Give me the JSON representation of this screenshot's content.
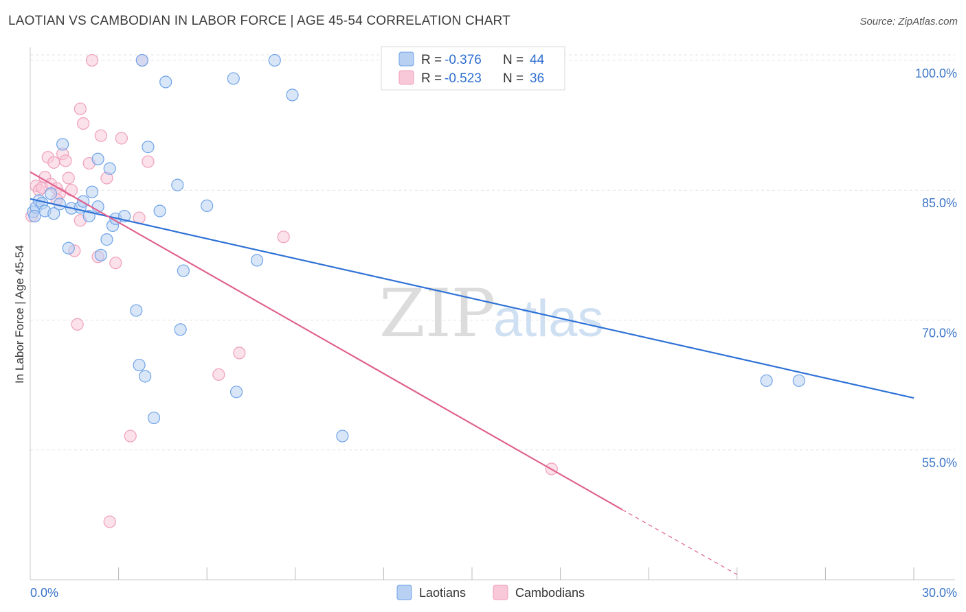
{
  "chart_data": {
    "type": "scatter",
    "title": "LAOTIAN VS CAMBODIAN IN LABOR FORCE | AGE 45-54 CORRELATION CHART",
    "source": "Source: ZipAtlas.com",
    "xlabel": "",
    "ylabel": "In Labor Force | Age 45-54",
    "xlim": [
      0,
      30
    ],
    "ylim": [
      40,
      101.5
    ],
    "x_tick_labels": [
      {
        "value": 0,
        "label": "0.0%"
      },
      {
        "value": 30,
        "label": "30.0%"
      }
    ],
    "y_tick_labels": [
      {
        "value": 100,
        "label": "100.0%"
      },
      {
        "value": 85,
        "label": "85.0%"
      },
      {
        "value": 70,
        "label": "70.0%"
      },
      {
        "value": 55,
        "label": "55.0%"
      }
    ],
    "grid": true,
    "legend_position": "top-center",
    "watermark": {
      "zip": "ZIP",
      "atlas": "atlas"
    },
    "series": [
      {
        "name": "Laotians",
        "color": "#6fa3e8",
        "fill": "#b8d1f3",
        "line_color": "#2f72d6",
        "r": "-0.376",
        "n": "44",
        "trend": {
          "x0": 0,
          "y0": 84.0,
          "x1": 30,
          "y1": 61.0
        },
        "points": [
          [
            0.1,
            82.5
          ],
          [
            0.2,
            83.0
          ],
          [
            0.3,
            83.8
          ],
          [
            0.4,
            83.5
          ],
          [
            0.5,
            82.6
          ],
          [
            0.7,
            84.6
          ],
          [
            0.8,
            82.3
          ],
          [
            1.0,
            83.4
          ],
          [
            1.1,
            90.3
          ],
          [
            1.3,
            78.3
          ],
          [
            1.4,
            82.9
          ],
          [
            1.7,
            83.0
          ],
          [
            1.8,
            83.7
          ],
          [
            2.0,
            82.0
          ],
          [
            2.1,
            84.8
          ],
          [
            2.3,
            83.1
          ],
          [
            2.3,
            88.6
          ],
          [
            2.4,
            77.5
          ],
          [
            2.6,
            79.3
          ],
          [
            2.7,
            87.5
          ],
          [
            2.8,
            80.9
          ],
          [
            2.9,
            81.7
          ],
          [
            3.2,
            82.0
          ],
          [
            3.6,
            71.1
          ],
          [
            3.7,
            64.8
          ],
          [
            3.8,
            100.0
          ],
          [
            3.9,
            63.5
          ],
          [
            4.0,
            90.0
          ],
          [
            4.2,
            58.7
          ],
          [
            4.4,
            82.6
          ],
          [
            4.6,
            97.5
          ],
          [
            5.0,
            85.6
          ],
          [
            5.1,
            68.9
          ],
          [
            5.2,
            75.7
          ],
          [
            6.0,
            83.2
          ],
          [
            6.9,
            97.9
          ],
          [
            7.0,
            61.7
          ],
          [
            7.7,
            76.9
          ],
          [
            8.3,
            100.0
          ],
          [
            8.9,
            96.0
          ],
          [
            10.6,
            56.6
          ],
          [
            25.0,
            63.0
          ],
          [
            26.1,
            63.0
          ],
          [
            0.15,
            82.0
          ]
        ]
      },
      {
        "name": "Cambodians",
        "color": "#ef9fbb",
        "fill": "#f8c8d8",
        "line_color": "#e0628f",
        "r": "-0.523",
        "n": "36",
        "trend": {
          "x0": 0,
          "y0": 87.1,
          "x1": 20.1,
          "y1": 48.1
        },
        "trend_dash": {
          "x0": 20.1,
          "y0": 48.1,
          "x1": 24.0,
          "y1": 40.6
        },
        "points": [
          [
            0.05,
            82.0
          ],
          [
            0.2,
            85.5
          ],
          [
            0.3,
            85.0
          ],
          [
            0.4,
            85.3
          ],
          [
            0.5,
            86.5
          ],
          [
            0.6,
            88.8
          ],
          [
            0.7,
            85.7
          ],
          [
            0.8,
            88.2
          ],
          [
            0.9,
            85.2
          ],
          [
            1.1,
            89.2
          ],
          [
            1.2,
            88.4
          ],
          [
            1.3,
            86.4
          ],
          [
            1.4,
            85.0
          ],
          [
            1.5,
            78.0
          ],
          [
            1.6,
            69.5
          ],
          [
            1.7,
            81.5
          ],
          [
            1.7,
            94.4
          ],
          [
            1.8,
            92.7
          ],
          [
            2.0,
            88.1
          ],
          [
            2.1,
            100.0
          ],
          [
            2.3,
            77.3
          ],
          [
            2.4,
            91.3
          ],
          [
            2.6,
            86.4
          ],
          [
            2.9,
            76.6
          ],
          [
            3.1,
            91.0
          ],
          [
            3.4,
            56.6
          ],
          [
            3.7,
            81.8
          ],
          [
            3.8,
            100.0
          ],
          [
            4.0,
            88.3
          ],
          [
            6.4,
            63.7
          ],
          [
            7.1,
            66.2
          ],
          [
            8.6,
            79.6
          ],
          [
            17.7,
            52.8
          ],
          [
            2.7,
            46.7
          ],
          [
            1.0,
            84.6
          ],
          [
            0.9,
            83.9
          ]
        ]
      }
    ]
  }
}
